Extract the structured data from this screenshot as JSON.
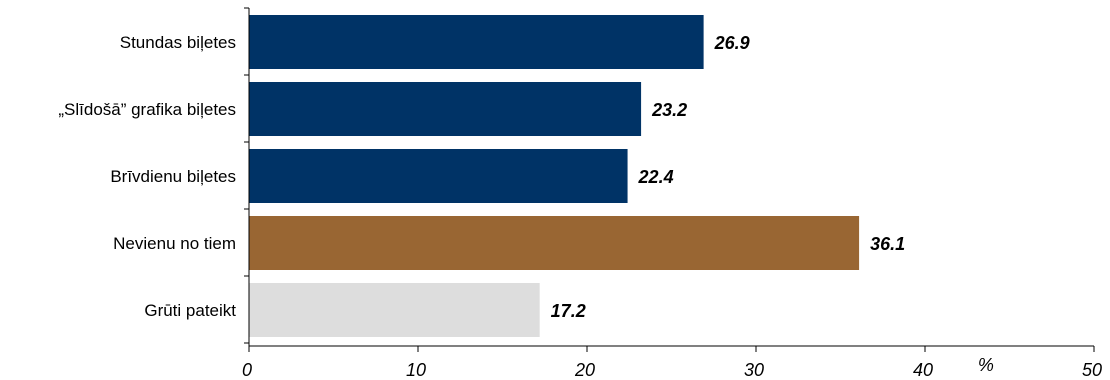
{
  "chart_data": {
    "type": "bar",
    "orientation": "horizontal",
    "categories": [
      "Stundas biļetes",
      "„Slīdošā” grafika biļetes",
      "Brīvdienu biļetes",
      "Nevienu no tiem",
      "Grūti pateikt"
    ],
    "values": [
      26.9,
      23.2,
      22.4,
      36.1,
      17.2
    ],
    "value_labels": [
      "26.9",
      "23.2",
      "22.4",
      "36.1",
      "17.2"
    ],
    "colors": [
      "#003366",
      "#003366",
      "#003366",
      "#996633",
      "#dddddd"
    ],
    "xlim": [
      0,
      50
    ],
    "xticks": [
      0,
      10,
      20,
      30,
      40,
      50
    ],
    "xtick_labels": [
      "0",
      "10",
      "20",
      "30",
      "40",
      "50"
    ],
    "xunit": "%",
    "title": "",
    "xlabel": "",
    "ylabel": "",
    "grid": false,
    "legend": "none"
  }
}
